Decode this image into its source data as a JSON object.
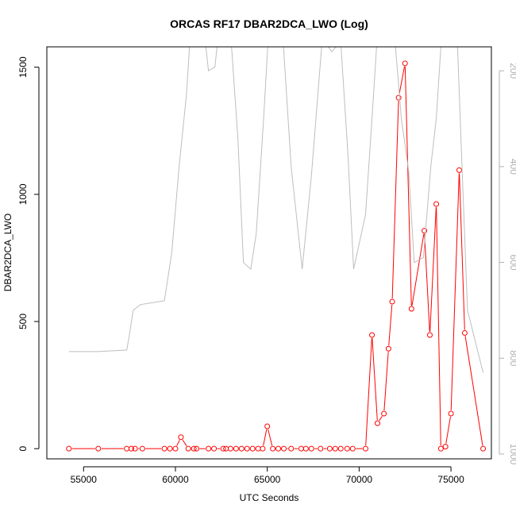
{
  "chart_data": {
    "type": "line",
    "title": "ORCAS RF17 DBAR2DCA_LWO (Log)",
    "xlabel": "UTC Seconds",
    "ylabel": "DBAR2DCA_LWO",
    "xlim": [
      53000,
      77200
    ],
    "ylim": [
      -40,
      1580
    ],
    "y2lim": [
      1010,
      150
    ],
    "x_ticks": [
      55000,
      60000,
      65000,
      70000,
      75000
    ],
    "x_tick_labels": [
      "55000",
      "60000",
      "65000",
      "70000",
      "75000"
    ],
    "y_ticks": [
      0,
      500,
      1000,
      1500
    ],
    "y_tick_labels": [
      "0",
      "500",
      "1000",
      "1500"
    ],
    "y2_ticks": [
      200,
      400,
      600,
      800,
      1000
    ],
    "y2_tick_labels": [
      "200",
      "400",
      "600",
      "800",
      "1000"
    ],
    "series": [
      {
        "role": "primary",
        "color": "#ff0000",
        "marker": "open-circle",
        "x": [
          54200,
          55800,
          57350,
          57600,
          57800,
          58200,
          59400,
          59700,
          60000,
          60300,
          60700,
          61000,
          61150,
          61800,
          62100,
          62600,
          62750,
          63000,
          63300,
          63600,
          63900,
          64200,
          64500,
          64750,
          65000,
          65300,
          65600,
          65900,
          66300,
          66850,
          67100,
          67400,
          67900,
          68400,
          68700,
          69000,
          69350,
          69650,
          70350,
          70700,
          71000,
          71350,
          71600,
          71800,
          72150,
          72500,
          72850,
          73550,
          73850,
          74200,
          74450,
          74700,
          75000,
          75450,
          75750,
          76750
        ],
        "y": [
          0,
          0,
          0,
          0,
          0,
          0,
          0,
          0,
          0,
          45,
          0,
          0,
          0,
          0,
          0,
          0,
          0,
          0,
          0,
          0,
          0,
          0,
          0,
          0,
          88,
          0,
          0,
          0,
          0,
          0,
          0,
          0,
          0,
          0,
          0,
          0,
          0,
          0,
          0,
          447,
          100,
          138,
          393,
          578,
          1380,
          1515,
          550,
          857,
          447,
          962,
          0,
          8,
          138,
          1095,
          455,
          0
        ]
      },
      {
        "role": "secondary",
        "color": "#bebebe",
        "axis": "right",
        "x": [
          54200,
          55800,
          57350,
          57500,
          57700,
          58100,
          59400,
          59800,
          60200,
          60600,
          60800,
          61000,
          61400,
          61800,
          62150,
          62400,
          62600,
          63000,
          63400,
          63700,
          64100,
          64400,
          64800,
          65100,
          65500,
          65800,
          66300,
          66900,
          67400,
          68000,
          68500,
          69000,
          69400,
          69700,
          70350,
          70700,
          71000,
          71500,
          71850,
          72300,
          72700,
          73000,
          73500,
          73900,
          74200,
          74500,
          74750,
          75300,
          75600,
          75900,
          76750
        ],
        "y": [
          786,
          786,
          783,
          750,
          700,
          688,
          680,
          580,
          400,
          250,
          130,
          60,
          60,
          200,
          192,
          100,
          110,
          120,
          340,
          600,
          614,
          540,
          300,
          100,
          120,
          100,
          400,
          614,
          420,
          130,
          160,
          140,
          380,
          614,
          500,
          300,
          120,
          80,
          90,
          300,
          410,
          600,
          590,
          400,
          300,
          120,
          100,
          90,
          400,
          700,
          830
        ]
      }
    ]
  }
}
